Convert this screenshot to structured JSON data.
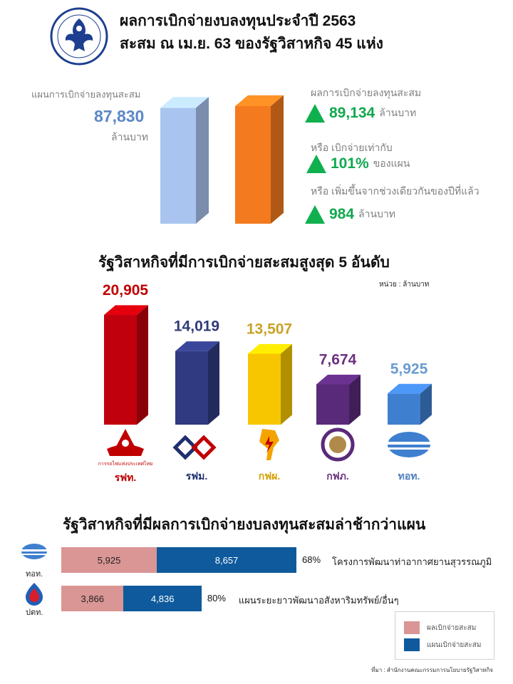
{
  "header": {
    "title_line1": "ผลการเบิกจ่ายงบลงทุนประจำปี 2563",
    "title_line2": "สะสม ณ เม.ย. 63 ของรัฐวิสาหกิจ 45 แห่ง",
    "logo_icon": "garuda-seal-icon"
  },
  "summary": {
    "plan_label": "แผนการเบิกจ่ายลงทุนสะสม",
    "plan_value": "87,830",
    "plan_unit": "ล้านบาท",
    "actual_label": "ผลการเบิกจ่ายลงทุนสะสม",
    "actual_value": "89,134",
    "actual_unit": "ล้านบาท",
    "pct_label": "หรือ เบิกจ่ายเท่ากับ",
    "pct_value": "101%",
    "pct_unit": "ของแผน",
    "increase_label": "หรือ เพิ่มขึ้นจากช่วงเดียวกันของปีที่แล้ว",
    "increase_value": "984",
    "increase_unit": "ล้านบาท",
    "plan_color": "#a9c4ef",
    "actual_color": "#f47a1f",
    "up_arrow_color": "#10b04f"
  },
  "top5": {
    "heading": "รัฐวิสาหกิจที่มีการเบิกจ่ายสะสมสูงสุด 5 อันดับ",
    "unit_note": "หน่วย : ล้านบาท"
  },
  "chart_data": [
    {
      "type": "bar",
      "categories": [
        "แผนการเบิกจ่ายลงทุนสะสม",
        "ผลการเบิกจ่ายลงทุนสะสม"
      ],
      "values": [
        87830,
        89134
      ],
      "colors": [
        "#a9c4ef",
        "#f47a1f"
      ]
    },
    {
      "type": "bar",
      "title": "รัฐวิสาหกิจที่มีการเบิกจ่ายสะสมสูงสุด 5 อันดับ",
      "ylabel": "หน่วย : ล้านบาท",
      "categories": [
        "รฟท.",
        "รฟม.",
        "กฟผ.",
        "กฟภ.",
        "ทอท."
      ],
      "values": [
        20905,
        14019,
        13507,
        7674,
        5925
      ],
      "value_labels": [
        "20,905",
        "14,019",
        "13,507",
        "7,674",
        "5,925"
      ],
      "colors": [
        "#c0000c",
        "#303a80",
        "#f7c600",
        "#5a2a7a",
        "#3f7fcf"
      ],
      "label_colors": [
        "#c00000",
        "#2f3a78",
        "#c9a227",
        "#6b3080",
        "#6a9bd1"
      ],
      "name_colors": [
        "#c00000",
        "#1f2f6e",
        "#d4a000",
        "#6b3080",
        "#4f7fbf"
      ],
      "logo_icons": [
        "srt-railway-logo-icon",
        "mrta-logo-icon",
        "egat-logo-icon",
        "pea-logo-icon",
        "aot-logo-icon"
      ],
      "logo_caption": "การรถไฟแห่งประเทศไทย"
    },
    {
      "type": "bar",
      "orientation": "horizontal",
      "stacked": true,
      "title": "รัฐวิสาหกิจที่มีผลการเบิกจ่ายงบลงทุนสะสมล่าช้ากว่าแผน",
      "categories": [
        "ทอท.",
        "ปตท."
      ],
      "series": [
        {
          "name": "ผลเบิกจ่ายสะสม",
          "values": [
            5925,
            3866
          ],
          "labels": [
            "5,925",
            "3,866"
          ],
          "color": "#d99694"
        },
        {
          "name": "แผนเบิกจ่ายสะสม",
          "values": [
            8657,
            4836
          ],
          "labels": [
            "8,657",
            "4,836"
          ],
          "color": "#0e5a9c"
        }
      ],
      "percent": [
        "68%",
        "80%"
      ],
      "projects": [
        "โครงการพัฒนาท่าอากาศยานสุวรรณภูมิ",
        "แผนระยะยาวพัฒนาอสังหาริมทรัพย์/อื่นๆ"
      ],
      "logo_icons": [
        "aot-logo-icon",
        "ptt-logo-icon"
      ],
      "legend_placement": "bottom-right"
    }
  ],
  "delayed": {
    "heading": "รัฐวิสาหกิจที่มีผลการเบิกจ่ายงบลงทุนสะสมล่าช้ากว่าแผน",
    "legend_actual": "ผลเบิกจ่ายสะสม",
    "legend_plan": "แผนเบิกจ่ายสะสม"
  },
  "footer": {
    "source": "ที่มา : สำนักงานคณะกรรมการนโยบายรัฐวิสาหกิจ"
  }
}
